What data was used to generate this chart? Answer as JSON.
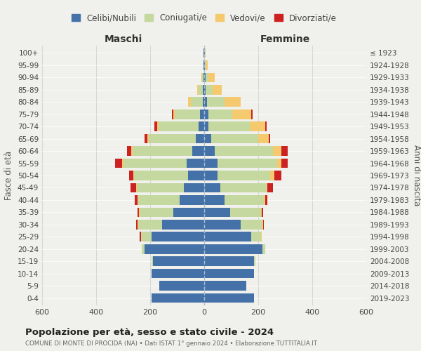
{
  "age_groups": [
    "0-4",
    "5-9",
    "10-14",
    "15-19",
    "20-24",
    "25-29",
    "30-34",
    "35-39",
    "40-44",
    "45-49",
    "50-54",
    "55-59",
    "60-64",
    "65-69",
    "70-74",
    "75-79",
    "80-84",
    "85-89",
    "90-94",
    "95-99",
    "100+"
  ],
  "birth_years": [
    "2019-2023",
    "2014-2018",
    "2009-2013",
    "2004-2008",
    "1999-2003",
    "1994-1998",
    "1989-1993",
    "1984-1988",
    "1979-1983",
    "1974-1978",
    "1969-1973",
    "1964-1968",
    "1959-1963",
    "1954-1958",
    "1949-1953",
    "1944-1948",
    "1939-1943",
    "1934-1938",
    "1929-1933",
    "1924-1928",
    "≤ 1923"
  ],
  "colors": {
    "celibi": "#4472a8",
    "coniugati": "#c5d8a0",
    "vedovi": "#f5c96e",
    "divorziati": "#cc2222",
    "grid": "#cccccc",
    "dashed_line": "#aabbcc",
    "bg": "#f0f0ec"
  },
  "maschi": {
    "celibi": [
      195,
      165,
      195,
      190,
      220,
      195,
      155,
      115,
      90,
      75,
      60,
      65,
      45,
      30,
      20,
      15,
      5,
      5,
      3,
      2,
      2
    ],
    "coniugati": [
      0,
      0,
      0,
      5,
      10,
      40,
      90,
      125,
      155,
      175,
      200,
      235,
      220,
      175,
      150,
      95,
      45,
      15,
      5,
      0,
      0
    ],
    "vedovi": [
      0,
      0,
      0,
      0,
      0,
      0,
      2,
      2,
      2,
      2,
      3,
      5,
      5,
      5,
      5,
      5,
      10,
      5,
      2,
      0,
      0
    ],
    "divorziati": [
      0,
      0,
      0,
      0,
      0,
      5,
      5,
      5,
      10,
      20,
      15,
      25,
      15,
      10,
      10,
      5,
      0,
      0,
      0,
      0,
      0
    ]
  },
  "femmine": {
    "celibi": [
      185,
      155,
      185,
      185,
      215,
      175,
      135,
      95,
      75,
      60,
      50,
      50,
      40,
      25,
      15,
      15,
      10,
      5,
      5,
      2,
      2
    ],
    "coniugati": [
      0,
      0,
      0,
      5,
      10,
      35,
      80,
      115,
      145,
      170,
      195,
      220,
      215,
      175,
      155,
      90,
      65,
      25,
      10,
      2,
      0
    ],
    "vedovi": [
      0,
      0,
      0,
      0,
      0,
      2,
      2,
      2,
      5,
      5,
      15,
      15,
      30,
      40,
      55,
      70,
      60,
      35,
      25,
      10,
      3
    ],
    "divorziati": [
      0,
      0,
      0,
      0,
      0,
      2,
      5,
      5,
      10,
      20,
      25,
      25,
      25,
      5,
      5,
      5,
      0,
      0,
      0,
      0,
      0
    ]
  },
  "title": "Popolazione per età, sesso e stato civile - 2024",
  "subtitle": "COMUNE DI MONTE DI PROCIDA (NA) • Dati ISTAT 1° gennaio 2024 • Elaborazione TUTTITALIA.IT",
  "xlabel_left": "Maschi",
  "xlabel_right": "Femmine",
  "ylabel_left": "Fasce di età",
  "ylabel_right": "Anni di nascita",
  "xlim": 600,
  "legend_labels": [
    "Celibi/Nubili",
    "Coniugati/e",
    "Vedovi/e",
    "Divorziati/e"
  ]
}
